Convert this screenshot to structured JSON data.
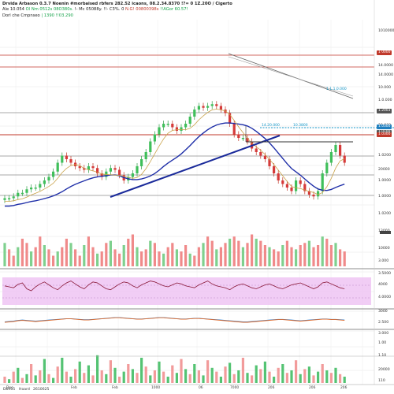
{
  "header": {
    "line1": "Drvida Arbason 0.3.7 Noenin #morbaised rbfers 282.52 icaons, 08.2.34.8370 !?= 0 1Z.20O / Cigerto",
    "line2_prefix": "Ale 10.054 ",
    "line2_green": "Ol Nm 0512s 08O380s.",
    "line2_mid": " !- Mc 05088y. !!- C3%. 0 ",
    "line2_red": "N.G! 00800398s ",
    "line2_tail": "!!AGor 60.57!",
    "line3_prefix": "Dorl che Cmpnseo ",
    "line3_green": "| 1390 !!03.290"
  },
  "y_axis": {
    "labels": [
      "+0.000",
      "1010000",
      "14.0000",
      "14.0000",
      "10.000",
      "1.0.000",
      "1.000",
      "10.000",
      "1.0000",
      "1.0200",
      "20000",
      "1.0000",
      "1.0000",
      "1.0200",
      "13000",
      "10000",
      "3.000",
      "3.5000",
      "4000",
      "4.0000",
      "3000",
      "2.500",
      "3.000",
      "1.00",
      "1.10",
      "20000",
      "110"
    ]
  },
  "price_tags": [
    {
      "text": "1 0000",
      "color": "#c0392b"
    },
    {
      "text": "1.2003",
      "color": "#555555"
    },
    {
      "text": "1.0100",
      "color": "#555555"
    },
    {
      "text": "1.0300",
      "color": "#1f7fbf"
    },
    {
      "text": "1.0300",
      "color": "#c0392b"
    }
  ],
  "overlay_labels": [
    "1.1.1.0.000",
    "14.20.000",
    "10.3800"
  ],
  "x_axis": {
    "labels": [
      "Dec",
      "Feb",
      "Feb",
      "1000",
      "06",
      "7000",
      "206",
      "206",
      "206"
    ]
  },
  "footer": {
    "left": "D6h05",
    "mid": "Hoard",
    "date": "2610625"
  },
  "chart_data": {
    "type": "candlestick",
    "title": "",
    "xlabel": "",
    "ylabel": "",
    "series": [
      {
        "name": "price",
        "values": [
          46,
          46,
          47,
          49,
          49,
          51,
          52,
          52,
          54,
          56,
          58,
          61,
          66,
          70,
          68,
          66,
          64,
          63,
          62,
          64,
          63,
          60,
          58,
          61,
          63,
          62,
          59,
          56,
          58,
          60,
          64,
          68,
          72,
          78,
          82,
          86,
          88,
          88,
          86,
          84,
          86,
          88,
          92,
          96,
          98,
          97,
          98,
          99,
          98,
          96,
          94,
          88,
          82,
          80,
          80,
          78,
          74,
          72,
          70,
          68,
          64,
          60,
          56,
          54,
          52,
          50,
          56,
          54,
          50,
          48,
          47,
          50,
          60,
          66,
          72,
          76,
          70,
          66
        ]
      },
      {
        "name": "volume",
        "values": [
          22,
          16,
          10,
          18,
          26,
          22,
          14,
          18,
          28,
          20,
          16,
          10,
          14,
          18,
          26,
          22,
          16,
          10,
          20,
          28,
          18,
          12,
          14,
          22,
          24,
          16,
          12,
          20,
          26,
          30,
          18,
          14,
          16,
          24,
          22,
          14,
          12,
          18,
          22,
          16,
          14,
          20,
          12,
          10,
          18,
          22,
          28,
          24,
          16,
          18,
          22,
          26,
          28,
          24,
          18,
          22,
          30,
          26,
          24,
          20,
          18,
          16,
          14,
          20,
          24,
          18,
          16,
          20,
          22,
          24,
          18,
          20,
          28,
          26,
          20,
          22,
          16,
          14
        ]
      },
      {
        "name": "rsi",
        "values": [
          52,
          50,
          48,
          55,
          58,
          46,
          42,
          50,
          56,
          60,
          54,
          48,
          44,
          52,
          58,
          62,
          56,
          50,
          46,
          54,
          60,
          58,
          52,
          46,
          44,
          50,
          56,
          60,
          58,
          52,
          48,
          54,
          58,
          62,
          60,
          56,
          52,
          50,
          54,
          58,
          56,
          52,
          50,
          48,
          54,
          58,
          62,
          56,
          52,
          50,
          48,
          44,
          50,
          54,
          56,
          52,
          48,
          46,
          50,
          54,
          56,
          52,
          48,
          46,
          50,
          54,
          56,
          58,
          54,
          50,
          46,
          50,
          58,
          60,
          56,
          52,
          48,
          46
        ]
      },
      {
        "name": "momentum",
        "values": [
          48,
          49,
          50,
          52,
          53,
          52,
          51,
          50,
          51,
          52,
          53,
          54,
          55,
          56,
          57,
          57,
          56,
          55,
          54,
          54,
          55,
          56,
          57,
          58,
          59,
          60,
          60,
          59,
          58,
          57,
          56,
          56,
          57,
          58,
          59,
          60,
          60,
          59,
          58,
          57,
          56,
          56,
          57,
          58,
          58,
          57,
          56,
          55,
          54,
          53,
          52,
          51,
          50,
          49,
          48,
          48,
          49,
          50,
          51,
          52,
          53,
          54,
          55,
          55,
          54,
          53,
          52,
          51,
          52,
          53,
          54,
          55,
          56,
          56,
          55,
          55,
          54,
          53
        ]
      },
      {
        "name": "histogram",
        "values": [
          10,
          6,
          18,
          24,
          8,
          14,
          30,
          12,
          20,
          38,
          14,
          8,
          26,
          40,
          18,
          10,
          22,
          34,
          16,
          28,
          12,
          44,
          20,
          14,
          36,
          24,
          10,
          18,
          30,
          22,
          16,
          40,
          26,
          12,
          20,
          34,
          18,
          10,
          28,
          16,
          38,
          22,
          14,
          30,
          20,
          12,
          36,
          24,
          18,
          10,
          26,
          32,
          14,
          20,
          40,
          16,
          12,
          28,
          22,
          34,
          18,
          10,
          24,
          30,
          16,
          20,
          36,
          14,
          22,
          26,
          12,
          18,
          30,
          20,
          16,
          24,
          14,
          10
        ]
      }
    ]
  }
}
